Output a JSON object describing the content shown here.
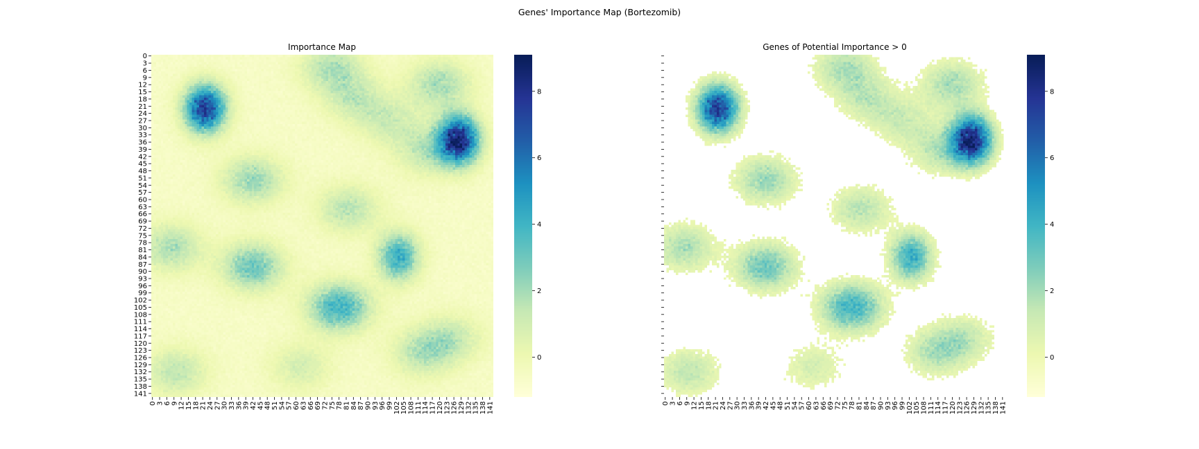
{
  "figure": {
    "suptitle": "Genes' Importance Map (Bortezomib)"
  },
  "chart_data": [
    {
      "type": "heatmap",
      "title": "Importance Map",
      "xlabel": "",
      "ylabel": "",
      "rows": 143,
      "cols": 143,
      "x_tick_labels": [
        "0",
        "3",
        "6",
        "9",
        "12",
        "15",
        "18",
        "21",
        "24",
        "27",
        "30",
        "33",
        "36",
        "39",
        "42",
        "45",
        "48",
        "51",
        "54",
        "57",
        "60",
        "63",
        "66",
        "69",
        "72",
        "75",
        "78",
        "81",
        "84",
        "87",
        "90",
        "93",
        "96",
        "99",
        "102",
        "105",
        "108",
        "111",
        "114",
        "117",
        "120",
        "123",
        "126",
        "129",
        "132",
        "135",
        "138",
        "141"
      ],
      "y_tick_labels": [
        "0",
        "3",
        "6",
        "9",
        "12",
        "15",
        "18",
        "21",
        "24",
        "27",
        "30",
        "33",
        "36",
        "39",
        "42",
        "45",
        "48",
        "51",
        "54",
        "57",
        "60",
        "63",
        "66",
        "69",
        "72",
        "75",
        "78",
        "81",
        "84",
        "87",
        "90",
        "93",
        "96",
        "99",
        "102",
        "105",
        "108",
        "111",
        "114",
        "117",
        "120",
        "123",
        "126",
        "129",
        "132",
        "135",
        "138",
        "141"
      ],
      "colormap": "YlGnBu",
      "colorbar": {
        "range": [
          -1.2,
          9.1
        ],
        "ticks": [
          0,
          2,
          4,
          6,
          8
        ]
      },
      "baseline_value": -0.6,
      "hotspots": [
        {
          "row": 22,
          "col": 22,
          "peak": 7.5
        },
        {
          "row": 35,
          "col": 128,
          "peak": 8.3
        },
        {
          "row": 5,
          "col": 75,
          "peak": 1.8
        },
        {
          "row": 12,
          "col": 120,
          "peak": 2.0
        },
        {
          "row": 18,
          "col": 85,
          "peak": 1.3
        },
        {
          "row": 28,
          "col": 100,
          "peak": 1.0
        },
        {
          "row": 52,
          "col": 42,
          "peak": 2.2
        },
        {
          "row": 64,
          "col": 82,
          "peak": 1.6
        },
        {
          "row": 80,
          "col": 8,
          "peak": 1.9
        },
        {
          "row": 88,
          "col": 42,
          "peak": 3.0
        },
        {
          "row": 84,
          "col": 103,
          "peak": 4.2
        },
        {
          "row": 105,
          "col": 78,
          "peak": 4.0
        },
        {
          "row": 124,
          "col": 113,
          "peak": 1.6
        },
        {
          "row": 132,
          "col": 10,
          "peak": 1.5
        },
        {
          "row": 118,
          "col": 125,
          "peak": 1.2
        },
        {
          "row": 130,
          "col": 62,
          "peak": 0.9
        },
        {
          "row": 40,
          "col": 115,
          "peak": 1.4
        }
      ]
    },
    {
      "type": "heatmap",
      "title": "Genes of Potential Importance > 0",
      "xlabel": "",
      "ylabel": "",
      "rows": 143,
      "cols": 143,
      "mask": "values <= 0 shown as blank",
      "x_tick_labels": [
        "0",
        "3",
        "6",
        "9",
        "12",
        "15",
        "18",
        "21",
        "24",
        "27",
        "30",
        "33",
        "36",
        "39",
        "42",
        "45",
        "48",
        "51",
        "54",
        "57",
        "60",
        "63",
        "66",
        "69",
        "72",
        "75",
        "78",
        "81",
        "84",
        "87",
        "90",
        "93",
        "96",
        "99",
        "102",
        "105",
        "108",
        "111",
        "114",
        "117",
        "120",
        "123",
        "126",
        "129",
        "132",
        "135",
        "138",
        "141"
      ],
      "y_tick_labels": [],
      "colormap": "YlGnBu",
      "colorbar": {
        "range": [
          -1.2,
          9.1
        ],
        "ticks": [
          0,
          2,
          4,
          6,
          8
        ]
      }
    }
  ],
  "colors": {
    "cmap_stops": [
      "#ffffd9",
      "#edf8b1",
      "#c7e9b4",
      "#7fcdbb",
      "#41b6c4",
      "#1d91c0",
      "#225ea8",
      "#253494",
      "#081d58"
    ]
  }
}
